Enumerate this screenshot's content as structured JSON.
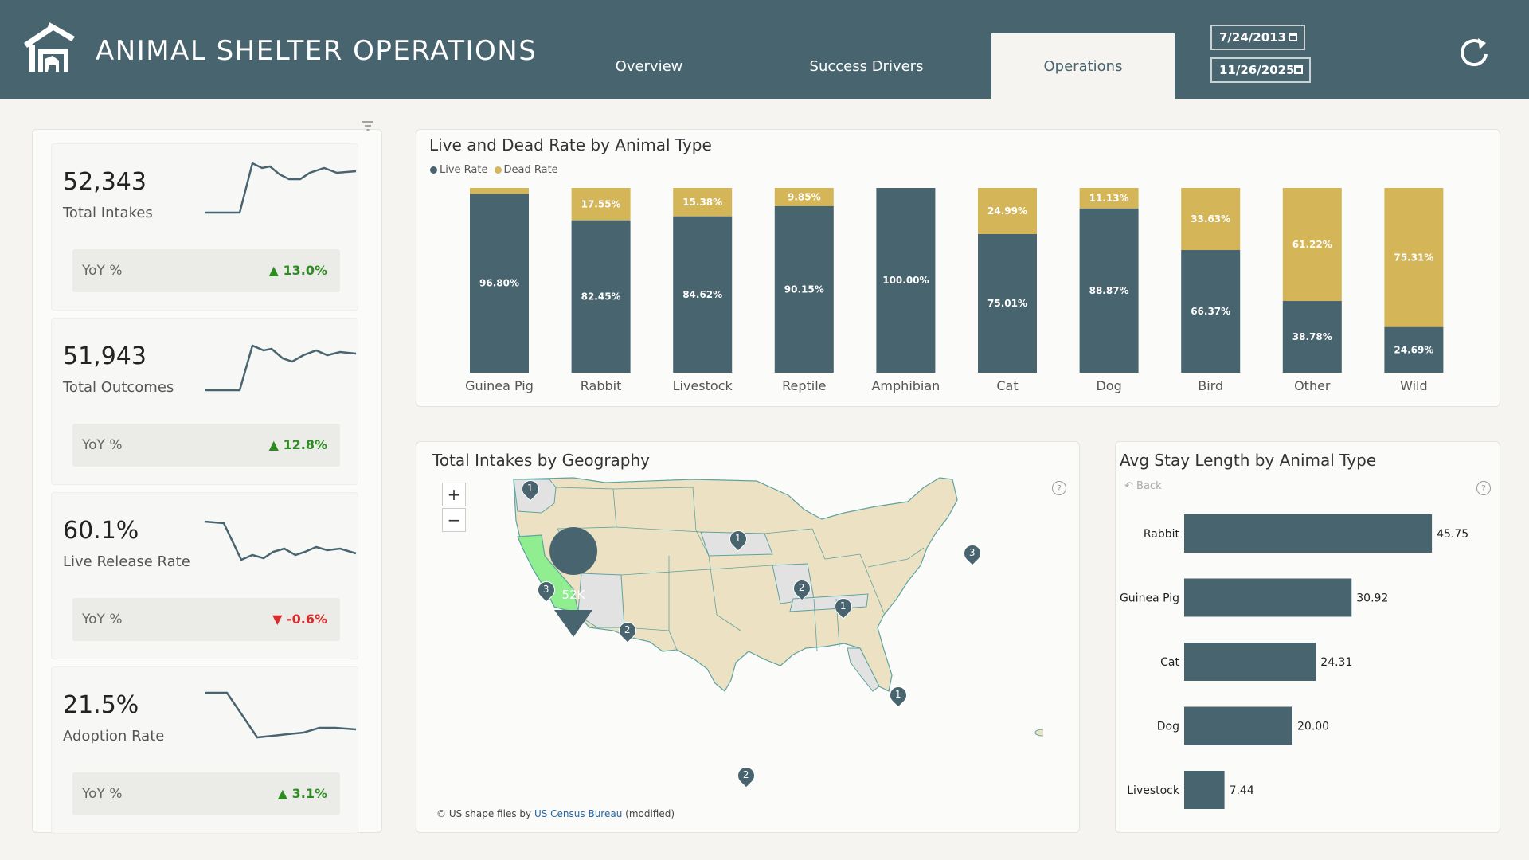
{
  "app": {
    "title": "ANIMAL SHELTER OPERATIONS"
  },
  "tabs": [
    {
      "label": "Overview",
      "active": false
    },
    {
      "label": "Success Drivers",
      "active": false
    },
    {
      "label": "Operations",
      "active": true
    }
  ],
  "dates": {
    "start": "7/24/2013",
    "end": "11/26/2025"
  },
  "icons": {
    "logo": "shelter-house-icon",
    "refresh": "refresh-icon",
    "calendar": "calendar-icon",
    "filter": "filter-icon",
    "help": "help-icon"
  },
  "colors": {
    "header": "#48646f",
    "live": "#48646f",
    "dead": "#d4b658",
    "up": "#2e8b22",
    "down": "#d92b2b",
    "highlight_state": "#90ee90"
  },
  "kpis": [
    {
      "value": "52,343",
      "label": "Total Intakes",
      "yoy_label": "YoY %",
      "yoy_value": "▲ 13.0%",
      "trend": "up"
    },
    {
      "value": "51,943",
      "label": "Total Outcomes",
      "yoy_label": "YoY %",
      "yoy_value": "▲ 12.8%",
      "trend": "up"
    },
    {
      "value": "60.1%",
      "label": "Live Release Rate",
      "yoy_label": "YoY %",
      "yoy_value": "▼ -0.6%",
      "trend": "down"
    },
    {
      "value": "21.5%",
      "label": "Adoption Rate",
      "yoy_label": "YoY %",
      "yoy_value": "▲ 3.1%",
      "trend": "up"
    }
  ],
  "live_dead": {
    "title": "Live and Dead Rate by Animal Type",
    "legend": [
      "Live Rate",
      "Dead Rate"
    ]
  },
  "map": {
    "title": "Total Intakes by Geography",
    "zoom_in": "+",
    "zoom_out": "−",
    "help": "?",
    "big_marker": "52K",
    "markers": [
      "1",
      "1",
      "3",
      "2",
      "1",
      "3",
      "2",
      "1",
      "2"
    ],
    "attribution_prefix": "© US shape files by",
    "attribution_link": "US Census Bureau",
    "attribution_suffix": "(modified)"
  },
  "stay": {
    "title": "Avg Stay Length by Animal Type",
    "back": "Back",
    "help": "?"
  },
  "chart_data": [
    {
      "type": "bar",
      "stacked": true,
      "title": "Live and Dead Rate by Animal Type",
      "categories": [
        "Guinea Pig",
        "Rabbit",
        "Livestock",
        "Reptile",
        "Amphibian",
        "Cat",
        "Dog",
        "Bird",
        "Other",
        "Wild"
      ],
      "series": [
        {
          "name": "Live Rate",
          "values": [
            96.8,
            82.45,
            84.62,
            90.15,
            100.0,
            75.01,
            88.87,
            66.37,
            38.78,
            24.69
          ],
          "labels": [
            "96.80%",
            "82.45%",
            "84.62%",
            "90.15%",
            "100.00%",
            "75.01%",
            "88.87%",
            "66.37%",
            "38.78%",
            "24.69%"
          ]
        },
        {
          "name": "Dead Rate",
          "values": [
            3.2,
            17.55,
            15.38,
            9.85,
            0,
            24.99,
            11.13,
            33.63,
            61.22,
            75.31
          ],
          "labels": [
            "",
            "17.55%",
            "15.38%",
            "9.85%",
            "",
            "24.99%",
            "11.13%",
            "33.63%",
            "61.22%",
            "75.31%"
          ]
        }
      ],
      "ylim": [
        0,
        100
      ],
      "legend": "top-left"
    },
    {
      "type": "bar",
      "orientation": "horizontal",
      "title": "Avg Stay Length by Animal Type",
      "categories": [
        "Rabbit",
        "Guinea Pig",
        "Cat",
        "Dog",
        "Livestock"
      ],
      "values": [
        45.75,
        30.92,
        24.31,
        20.0,
        7.44
      ],
      "labels": [
        "45.75",
        "30.92",
        "24.31",
        "20.00",
        "7.44"
      ],
      "xlim": [
        0,
        50
      ]
    }
  ]
}
